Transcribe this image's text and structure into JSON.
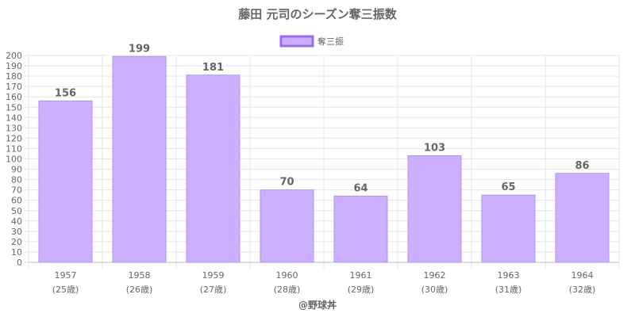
{
  "chart_data": {
    "type": "bar",
    "title": "藤田 元司のシーズン奪三振数",
    "legend": {
      "label": "奪三振",
      "position": "top"
    },
    "categories": [
      "1957",
      "1958",
      "1959",
      "1960",
      "1961",
      "1962",
      "1963",
      "1964"
    ],
    "category_sublabels": [
      "(25歳)",
      "(26歳)",
      "(27歳)",
      "(28歳)",
      "(29歳)",
      "(30歳)",
      "(31歳)",
      "(32歳)"
    ],
    "series": [
      {
        "name": "奪三振",
        "values": [
          156,
          199,
          181,
          70,
          64,
          103,
          65,
          86
        ]
      }
    ],
    "ylim": [
      0,
      200
    ],
    "ytick_step": 10,
    "grid": true,
    "colors": {
      "bar_fill": "#cbb0ff",
      "bar_stroke": "#b28ffa",
      "legend_fill": "#cbb0ff",
      "legend_stroke": "#9a6cf2"
    }
  },
  "credit": "@野球丼"
}
